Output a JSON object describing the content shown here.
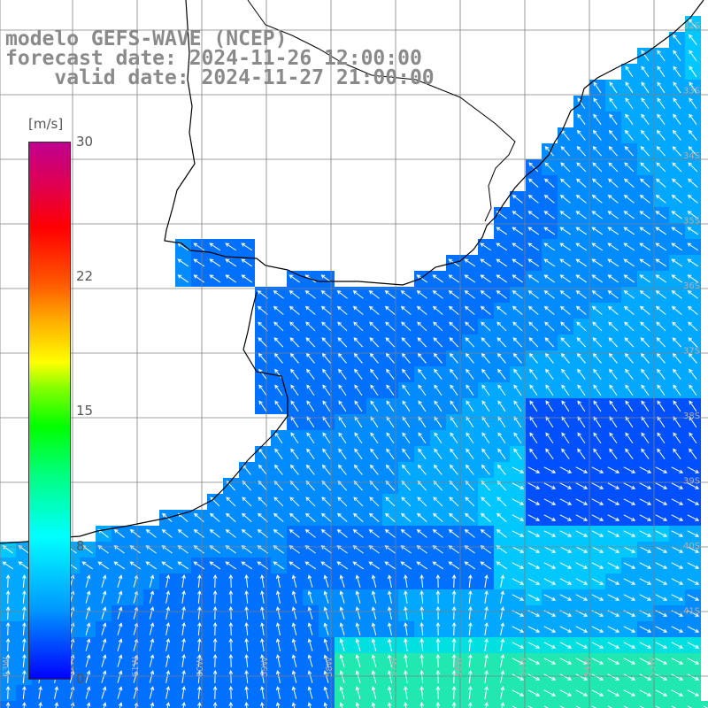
{
  "title": {
    "model": "modelo GEFS-WAVE (NCEP)",
    "forecast": "forecast date: 2024-11-26 12:00:00",
    "valid": "    valid date: 2024-11-27 21:00:00"
  },
  "colorbar": {
    "unit": "[m/s]",
    "ticks": [
      "30",
      "22",
      "15",
      "8",
      "0"
    ]
  },
  "map": {
    "lat_labels": [
      "32S",
      "33S",
      "34S",
      "35S",
      "36S",
      "37S",
      "38S",
      "39S",
      "40S",
      "41S"
    ],
    "lon_labels": [
      "63W",
      "62W",
      "61W",
      "60W",
      "59W",
      "58W",
      "57W",
      "56W",
      "55W",
      "54W",
      "53W"
    ],
    "colors": {
      "land": "#ffffff",
      "coast": "#000000",
      "grid": "#808080",
      "arrow": "#ffffff"
    }
  }
}
